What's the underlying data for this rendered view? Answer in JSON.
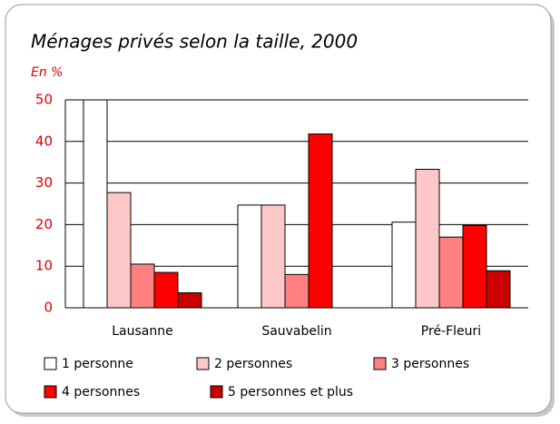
{
  "chart_data": {
    "type": "bar",
    "title": "Ménages privés selon la taille, 2000",
    "subtitle": "En %",
    "categories": [
      "Lausanne",
      "Sauvabelin",
      "Pré-Fleuri"
    ],
    "series": [
      {
        "name": "1 personne",
        "color": "#ffffff",
        "values": [
          50,
          24.7,
          20.6
        ]
      },
      {
        "name": "2 personnes",
        "color": "#ffc8c8",
        "values": [
          27.7,
          24.7,
          33.3
        ]
      },
      {
        "name": "3 personnes",
        "color": "#ff8080",
        "values": [
          10.5,
          8,
          17
        ]
      },
      {
        "name": "4 personnes",
        "color": "#ff0000",
        "values": [
          8.5,
          41.8,
          19.8
        ]
      },
      {
        "name": "5 personnes et plus",
        "color": "#cc0000",
        "values": [
          3.6,
          null,
          8.9
        ]
      }
    ],
    "ylim": [
      0,
      50
    ],
    "yticks": [
      0,
      10,
      20,
      30,
      40,
      50
    ],
    "grid": true
  }
}
